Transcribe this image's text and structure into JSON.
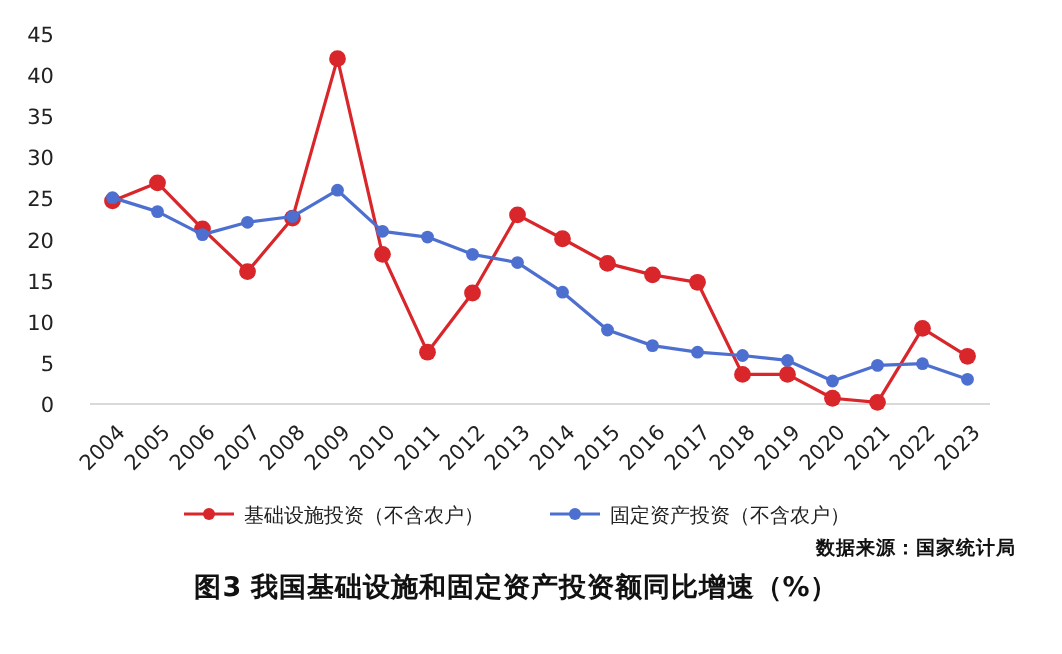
{
  "chart_data": {
    "type": "line",
    "title": "图3  我国基础设施和固定资产投资额同比增速（%）",
    "categories": [
      "2004",
      "2005",
      "2006",
      "2007",
      "2008",
      "2009",
      "2010",
      "2011",
      "2012",
      "2013",
      "2014",
      "2015",
      "2016",
      "2017",
      "2018",
      "2019",
      "2020",
      "2021",
      "2022",
      "2023"
    ],
    "series": [
      {
        "name": "基础设施投资（不含农户）",
        "color": "#d9262b",
        "values": [
          24.7,
          26.9,
          21.3,
          16.1,
          22.6,
          42.0,
          18.2,
          6.3,
          13.5,
          23.0,
          20.1,
          17.1,
          15.7,
          14.8,
          3.6,
          3.6,
          0.7,
          0.2,
          9.2,
          5.8
        ]
      },
      {
        "name": "固定资产投资（不含农户）",
        "color": "#4d6fd0",
        "values": [
          25.1,
          23.4,
          20.6,
          22.1,
          22.8,
          26.0,
          21.0,
          20.3,
          18.2,
          17.2,
          13.6,
          9.0,
          7.1,
          6.3,
          5.9,
          5.3,
          2.8,
          4.7,
          4.9,
          3.0
        ]
      }
    ],
    "ylim": [
      0,
      45
    ],
    "yticks": [
      0,
      5,
      10,
      15,
      20,
      25,
      30,
      35,
      40,
      45
    ],
    "grid": false,
    "legend": "bottom",
    "marker": "circle",
    "line_style": "solid",
    "annotations": [
      "数据来源：国家统计局"
    ]
  }
}
